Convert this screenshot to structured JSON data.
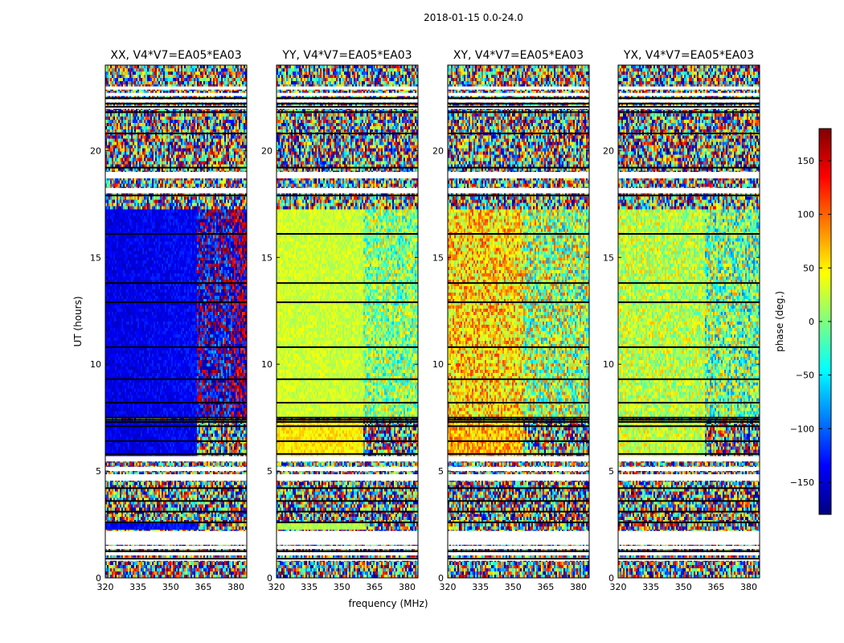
{
  "figure": {
    "suptitle": "2018-01-15 0.0-24.0",
    "xlabel": "frequency (MHz)",
    "ylabel": "UT (hours)",
    "colorbar_label": "phase (deg.)"
  },
  "chart_data": {
    "type": "heatmap",
    "colormap": "jet",
    "colormap_stops": [
      "#00007f",
      "#0000ff",
      "#007fff",
      "#00ffff",
      "#7fff7f",
      "#ffff00",
      "#ff7f00",
      "#ff0000",
      "#7f0000"
    ],
    "value_range": [
      -180,
      180
    ],
    "colorbar_ticks": [
      -150,
      -100,
      -50,
      0,
      50,
      100,
      150
    ],
    "xlim": [
      320,
      385
    ],
    "ylim": [
      0,
      24
    ],
    "xticks": [
      320,
      335,
      350,
      365,
      380
    ],
    "yticks": [
      0,
      5,
      10,
      15,
      20
    ],
    "grid": false,
    "flagged_color": "#ffffff",
    "white_gaps_ut": [
      [
        0.8,
        0.95
      ],
      [
        1.05,
        1.2
      ],
      [
        1.35,
        1.5
      ],
      [
        1.55,
        2.2
      ],
      [
        4.55,
        4.85
      ],
      [
        5.0,
        5.2
      ],
      [
        5.45,
        5.7
      ],
      [
        18.0,
        18.25
      ],
      [
        18.7,
        19.0
      ],
      [
        21.95,
        22.1
      ],
      [
        22.25,
        22.4
      ],
      [
        22.55,
        22.7
      ],
      [
        22.85,
        23.0
      ]
    ],
    "black_lines_ut": [
      0.9,
      1.25,
      2.6,
      3.1,
      3.6,
      4.2,
      5.8,
      6.4,
      7.1,
      7.3,
      7.4,
      7.5,
      8.2,
      9.3,
      10.8,
      12.9,
      13.8,
      16.1,
      17.9,
      19.2,
      20.8,
      21.8,
      22.05,
      22.2,
      22.45
    ]
  },
  "panels": [
    {
      "title": "XX, V4*V7=EA05*EA03",
      "coherent_blocks": [
        {
          "ut": [
            2.2,
            2.6
          ],
          "freq": [
            320,
            362
          ],
          "phase": -140,
          "noise": 18
        },
        {
          "ut": [
            5.7,
            7.3
          ],
          "freq": [
            320,
            362
          ],
          "phase": -145,
          "noise": 18
        },
        {
          "ut": [
            7.5,
            17.3
          ],
          "freq": [
            320,
            362
          ],
          "phase": -145,
          "noise": 18
        },
        {
          "ut": [
            7.5,
            17.3
          ],
          "freq": [
            362,
            378
          ],
          "phase": -160,
          "noise": 75
        },
        {
          "ut": [
            7.5,
            17.3
          ],
          "freq": [
            378,
            385
          ],
          "phase": 170,
          "noise": 70
        }
      ]
    },
    {
      "title": "YY, V4*V7=EA05*EA03",
      "coherent_blocks": [
        {
          "ut": [
            2.2,
            2.6
          ],
          "freq": [
            320,
            360
          ],
          "phase": 20,
          "noise": 15
        },
        {
          "ut": [
            5.7,
            7.3
          ],
          "freq": [
            320,
            360
          ],
          "phase": 55,
          "noise": 20
        },
        {
          "ut": [
            7.5,
            17.3
          ],
          "freq": [
            320,
            360
          ],
          "phase": 30,
          "noise": 18
        },
        {
          "ut": [
            7.5,
            17.3
          ],
          "freq": [
            360,
            385
          ],
          "phase": 10,
          "noise": 70
        }
      ]
    },
    {
      "title": "XY, V4*V7=EA05*EA03",
      "coherent_blocks": [
        {
          "ut": [
            5.7,
            7.3
          ],
          "freq": [
            320,
            355
          ],
          "phase": 75,
          "noise": 45
        },
        {
          "ut": [
            7.5,
            17.3
          ],
          "freq": [
            320,
            355
          ],
          "phase": 60,
          "noise": 60
        },
        {
          "ut": [
            7.5,
            17.3
          ],
          "freq": [
            355,
            385
          ],
          "phase": 20,
          "noise": 95
        }
      ]
    },
    {
      "title": "YX, V4*V7=EA05*EA03",
      "coherent_blocks": [
        {
          "ut": [
            5.7,
            7.3
          ],
          "freq": [
            320,
            360
          ],
          "phase": 30,
          "noise": 40
        },
        {
          "ut": [
            7.5,
            17.3
          ],
          "freq": [
            320,
            360
          ],
          "phase": 25,
          "noise": 45
        },
        {
          "ut": [
            7.5,
            17.3
          ],
          "freq": [
            360,
            385
          ],
          "phase": 5,
          "noise": 90
        }
      ]
    }
  ]
}
